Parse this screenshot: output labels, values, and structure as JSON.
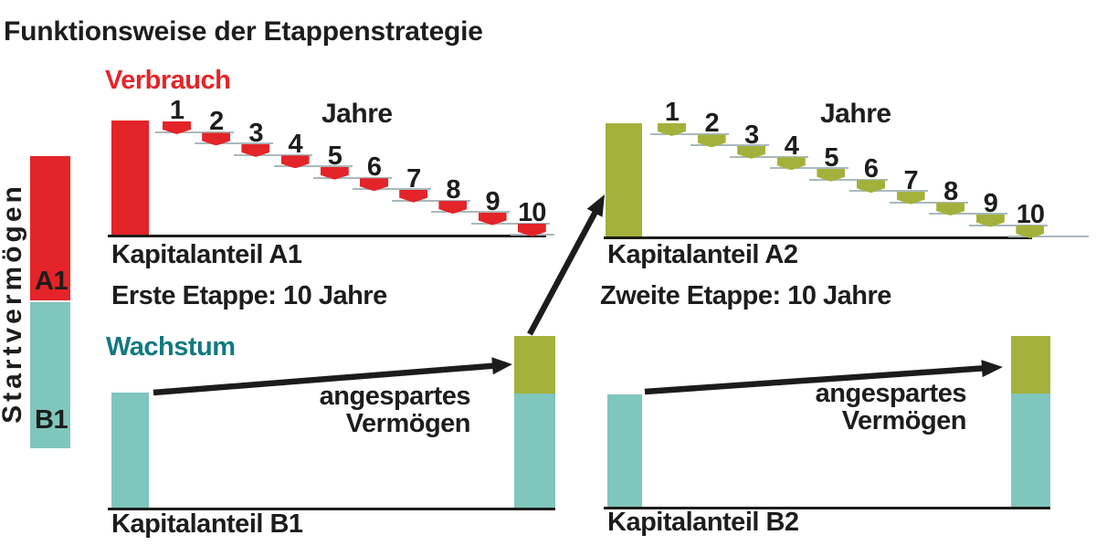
{
  "title": "Funktionsweise der Etappenstrategie",
  "legend": {
    "verbrauch": "Verbrauch",
    "wachstum": "Wachstum"
  },
  "start_bar": {
    "label": "Startvermögen",
    "segments": [
      {
        "label": "A1",
        "color": "#e32429"
      },
      {
        "label": "B1",
        "color": "#7fc6bc"
      }
    ]
  },
  "stages": [
    {
      "stage_label": "Erste Etappe: 10 Jahre",
      "consumption": {
        "bar_label": "Kapitalanteil A1",
        "years_label": "Jahre",
        "years": [
          "1",
          "2",
          "3",
          "4",
          "5",
          "6",
          "7",
          "8",
          "9",
          "10"
        ],
        "color": "#e32429"
      },
      "growth": {
        "bar_label": "Kapitalanteil B1",
        "arrow_label_line1": "angespartes",
        "arrow_label_line2": "Vermögen"
      }
    },
    {
      "stage_label": "Zweite Etappe: 10 Jahre",
      "consumption": {
        "bar_label": "Kapitalanteil A2",
        "years_label": "Jahre",
        "years": [
          "1",
          "2",
          "3",
          "4",
          "5",
          "6",
          "7",
          "8",
          "9",
          "10"
        ],
        "color": "#a3b13a"
      },
      "growth": {
        "bar_label": "Kapitalanteil B2",
        "arrow_label_line1": "angespartes",
        "arrow_label_line2": "Vermögen"
      }
    }
  ],
  "colors": {
    "red": "#e32429",
    "olive": "#a3b13a",
    "teal": "#7fc6bc",
    "teal_text": "#11797f",
    "ink": "#1d1d1b",
    "step_line": "#a9b8bd"
  }
}
